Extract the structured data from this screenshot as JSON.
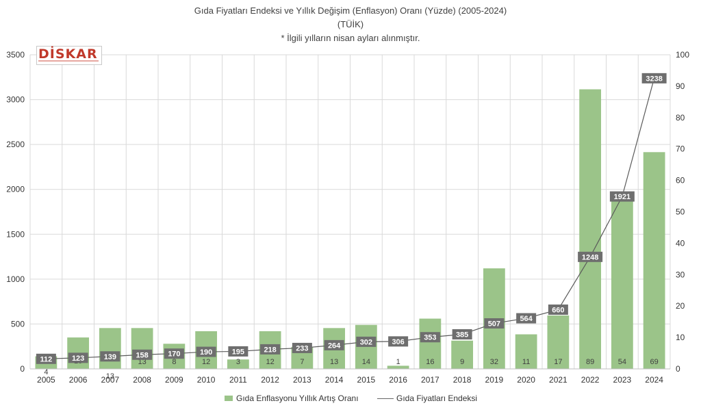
{
  "title": {
    "line1": "Gıda Fiyatları Endeksi ve Yıllık Değişim (Enflasyon) Oranı (Yüzde) (2005-2024)",
    "line2": "(TÜİK)",
    "line3": "* İlgili yılların nisan ayları alınmıştır."
  },
  "logo": {
    "text": "DİSKAR"
  },
  "legend": {
    "bar_label": "Gıda Enflasyonu Yıllık Artış Oranı",
    "line_label": "Gıda Fiyatları Endeksi"
  },
  "colors": {
    "bar": "#9bc489",
    "line": "#5a5a5a",
    "label_box": "#6e6e6e",
    "grid": "#d9d9d9"
  },
  "chart_data": {
    "type": "bar",
    "categories": [
      "2005",
      "2006",
      "2007",
      "2008",
      "2009",
      "2010",
      "2011",
      "2012",
      "2013",
      "2014",
      "2015",
      "2016",
      "2017",
      "2018",
      "2019",
      "2020",
      "2021",
      "2022",
      "2023",
      "2024"
    ],
    "left_axis": {
      "ylim": [
        0,
        3500
      ],
      "ticks": [
        "0",
        "500",
        "1000",
        "1500",
        "2000",
        "2500",
        "3000",
        "3500"
      ]
    },
    "right_axis": {
      "ylim": [
        0,
        100
      ],
      "ticks": [
        "0",
        "10",
        "20",
        "30",
        "40",
        "50",
        "60",
        "70",
        "80",
        "90",
        "100"
      ]
    },
    "series": [
      {
        "name": "Gıda Enflasyonu Yıllık Artış Oranı",
        "type": "bar",
        "axis": "right",
        "values": [
          4,
          10,
          13,
          13,
          8,
          12,
          3,
          12,
          7,
          13,
          14,
          1,
          16,
          9,
          32,
          11,
          17,
          89,
          54,
          69
        ],
        "labels": [
          "4",
          "10",
          "13",
          "13",
          "8",
          "12",
          "3",
          "12",
          "7",
          "13",
          "14",
          "1",
          "16",
          "9",
          "32",
          "11",
          "17",
          "89",
          "54",
          "69"
        ]
      },
      {
        "name": "Gıda Fiyatları Endeksi",
        "type": "line",
        "axis": "left",
        "values": [
          112,
          123,
          139,
          158,
          170,
          190,
          195,
          218,
          233,
          264,
          302,
          306,
          353,
          385,
          507,
          564,
          660,
          1248,
          1921,
          3238
        ],
        "labels": [
          "112",
          "123",
          "139",
          "158",
          "170",
          "190",
          "195",
          "218",
          "233",
          "264",
          "302",
          "306",
          "353",
          "385",
          "507",
          "564",
          "660",
          "1248",
          "1921",
          "3238"
        ]
      }
    ],
    "grid": true,
    "legend_position": "bottom"
  }
}
